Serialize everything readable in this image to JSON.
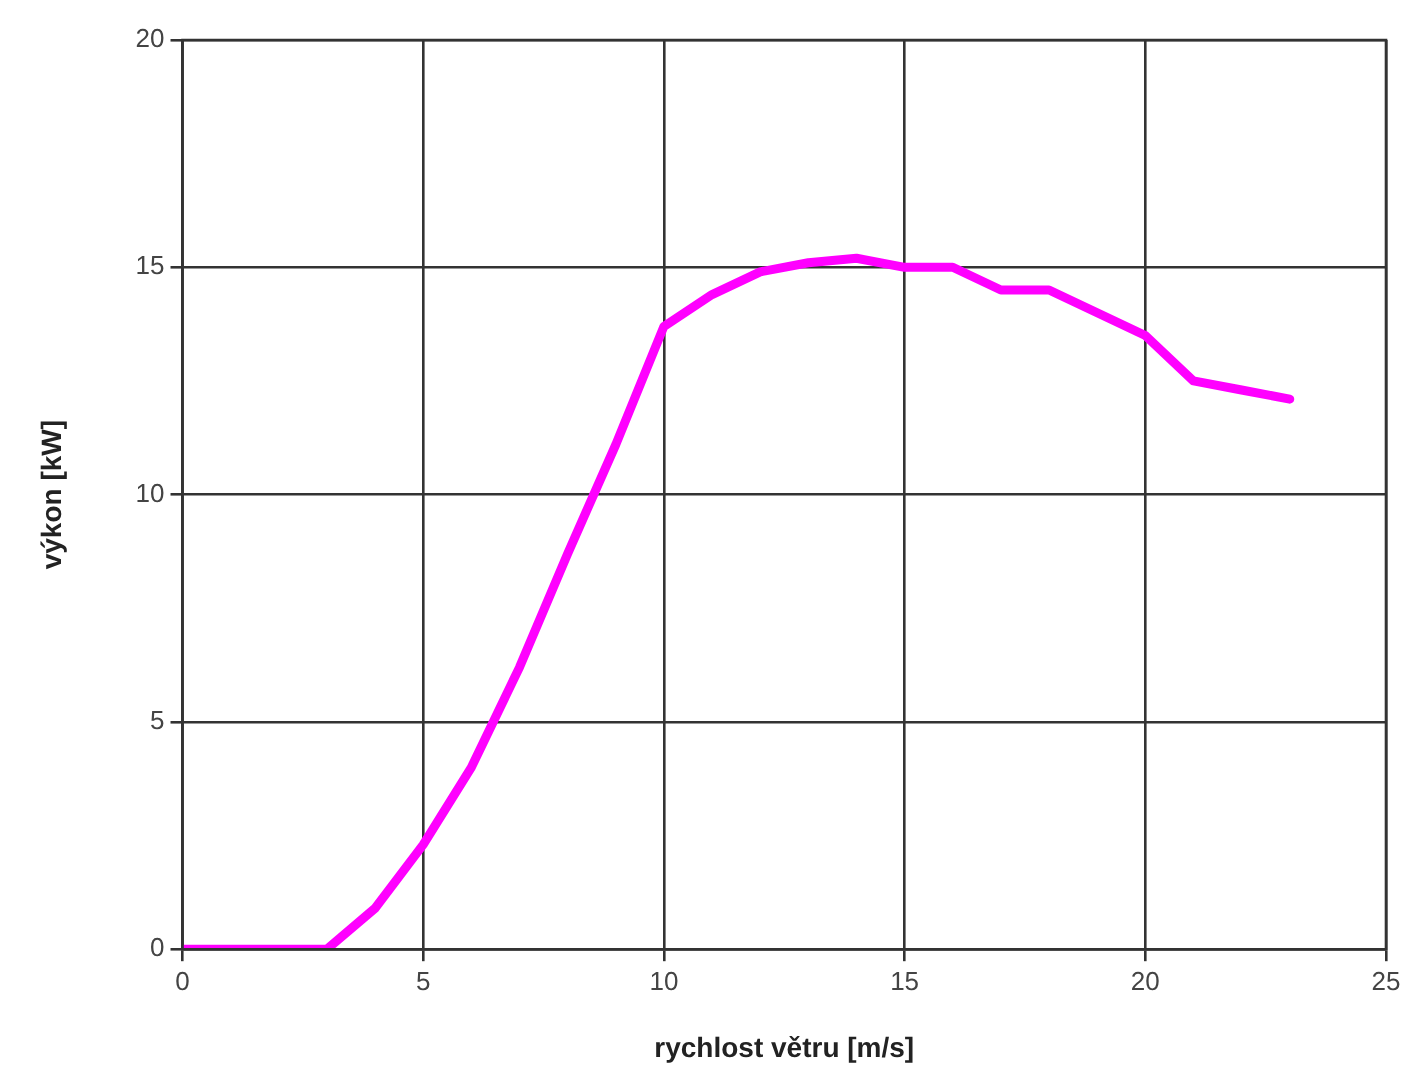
{
  "chart_data": {
    "type": "line",
    "xlabel": "rychlost větru [m/s]",
    "ylabel": "výkon [kW]",
    "x": [
      0,
      1,
      2,
      3,
      4,
      5,
      6,
      7,
      8,
      9,
      10,
      11,
      12,
      13,
      14,
      15,
      16,
      17,
      18,
      19,
      20,
      21,
      22,
      23
    ],
    "series": [
      {
        "color": "#ff00ff",
        "values": [
          0,
          0,
          0,
          0,
          0.9,
          2.3,
          4,
          6.2,
          8.7,
          11.1,
          13.7,
          14.4,
          14.9,
          15.1,
          15.2,
          15,
          15,
          14.5,
          14.5,
          14,
          13.5,
          12.5,
          12.3,
          12.1
        ]
      }
    ],
    "xlim": [
      0,
      25
    ],
    "xticks": [
      0,
      5,
      10,
      15,
      20,
      25
    ],
    "ylim": [
      0,
      20
    ],
    "yticks": [
      0,
      5,
      10,
      15,
      20
    ],
    "grid": true,
    "legend": false,
    "marker": "none",
    "line_style": "solid"
  }
}
